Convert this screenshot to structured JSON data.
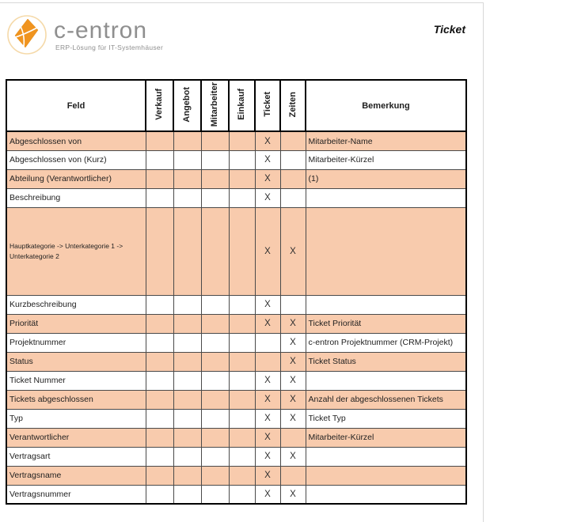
{
  "page": {
    "title": "Ticket",
    "logo": {
      "brand": "c-entron",
      "tagline": "ERP-Lösung für IT-Systemhäuser",
      "icon": "kite-icon",
      "icon_color": "#F0941F",
      "ring_color": "#F5D9A8"
    },
    "highlight_color": "#F8CBAD"
  },
  "table": {
    "columns": [
      "Feld",
      "Verkauf",
      "Angebot",
      "Mitarbeiter",
      "Einkauf",
      "Ticket",
      "Zeiten",
      "Bemerkung"
    ],
    "rows": [
      {
        "feld": "Abgeschlossen von",
        "verkauf": "",
        "angebot": "",
        "mitarbeiter": "",
        "einkauf": "",
        "ticket": "X",
        "zeiten": "",
        "bemerkung": "Mitarbeiter-Name",
        "highlight": true,
        "tall": false
      },
      {
        "feld": "Abgeschlossen von (Kurz)",
        "verkauf": "",
        "angebot": "",
        "mitarbeiter": "",
        "einkauf": "",
        "ticket": "X",
        "zeiten": "",
        "bemerkung": "Mitarbeiter-Kürzel",
        "highlight": false,
        "tall": false
      },
      {
        "feld": "Abteilung (Verantwortlicher)",
        "verkauf": "",
        "angebot": "",
        "mitarbeiter": "",
        "einkauf": "",
        "ticket": "X",
        "zeiten": "",
        "bemerkung": "(1)",
        "highlight": true,
        "tall": false
      },
      {
        "feld": "Beschreibung",
        "verkauf": "",
        "angebot": "",
        "mitarbeiter": "",
        "einkauf": "",
        "ticket": "X",
        "zeiten": "",
        "bemerkung": "",
        "highlight": false,
        "tall": false
      },
      {
        "feld": "Hauptkategorie -> Unterkategorie 1 -> Unterkategorie 2",
        "verkauf": "",
        "angebot": "",
        "mitarbeiter": "",
        "einkauf": "",
        "ticket": "X",
        "zeiten": "X",
        "bemerkung": "",
        "highlight": true,
        "tall": true
      },
      {
        "feld": "Kurzbeschreibung",
        "verkauf": "",
        "angebot": "",
        "mitarbeiter": "",
        "einkauf": "",
        "ticket": "X",
        "zeiten": "",
        "bemerkung": "",
        "highlight": false,
        "tall": false
      },
      {
        "feld": "Priorität",
        "verkauf": "",
        "angebot": "",
        "mitarbeiter": "",
        "einkauf": "",
        "ticket": "X",
        "zeiten": "X",
        "bemerkung": "Ticket Priorität",
        "highlight": true,
        "tall": false
      },
      {
        "feld": "Projektnummer",
        "verkauf": "",
        "angebot": "",
        "mitarbeiter": "",
        "einkauf": "",
        "ticket": "",
        "zeiten": "X",
        "bemerkung": "c-entron Projektnummer (CRM-Projekt)",
        "highlight": false,
        "tall": false
      },
      {
        "feld": "Status",
        "verkauf": "",
        "angebot": "",
        "mitarbeiter": "",
        "einkauf": "",
        "ticket": "",
        "zeiten": "X",
        "bemerkung": "Ticket Status",
        "highlight": true,
        "tall": false
      },
      {
        "feld": "Ticket Nummer",
        "verkauf": "",
        "angebot": "",
        "mitarbeiter": "",
        "einkauf": "",
        "ticket": "X",
        "zeiten": "X",
        "bemerkung": "",
        "highlight": false,
        "tall": false
      },
      {
        "feld": "Tickets abgeschlossen",
        "verkauf": "",
        "angebot": "",
        "mitarbeiter": "",
        "einkauf": "",
        "ticket": "X",
        "zeiten": "X",
        "bemerkung": "Anzahl der abgeschlossenen Tickets",
        "highlight": true,
        "tall": false
      },
      {
        "feld": "Typ",
        "verkauf": "",
        "angebot": "",
        "mitarbeiter": "",
        "einkauf": "",
        "ticket": "X",
        "zeiten": "X",
        "bemerkung": "Ticket Typ",
        "highlight": false,
        "tall": false
      },
      {
        "feld": "Verantwortlicher",
        "verkauf": "",
        "angebot": "",
        "mitarbeiter": "",
        "einkauf": "",
        "ticket": "X",
        "zeiten": "",
        "bemerkung": "Mitarbeiter-Kürzel",
        "highlight": true,
        "tall": false
      },
      {
        "feld": "Vertragsart",
        "verkauf": "",
        "angebot": "",
        "mitarbeiter": "",
        "einkauf": "",
        "ticket": "X",
        "zeiten": "X",
        "bemerkung": "",
        "highlight": false,
        "tall": false
      },
      {
        "feld": "Vertragsname",
        "verkauf": "",
        "angebot": "",
        "mitarbeiter": "",
        "einkauf": "",
        "ticket": "X",
        "zeiten": "",
        "bemerkung": "",
        "highlight": true,
        "tall": false
      },
      {
        "feld": "Vertragsnummer",
        "verkauf": "",
        "angebot": "",
        "mitarbeiter": "",
        "einkauf": "",
        "ticket": "X",
        "zeiten": "X",
        "bemerkung": "",
        "highlight": false,
        "tall": false
      }
    ]
  }
}
